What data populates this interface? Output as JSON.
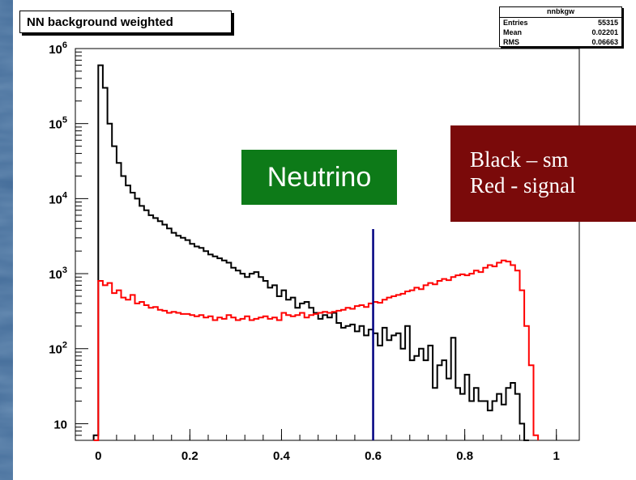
{
  "title": "NN background weighted",
  "stats": {
    "name": "nnbkgw",
    "rows": [
      {
        "label": "Entries",
        "value": "55315"
      },
      {
        "label": "Mean",
        "value": "0.02201"
      },
      {
        "label": "RMS",
        "value": "0.06663"
      }
    ]
  },
  "annotations": {
    "neutrino": "Neutrino",
    "legend_line1": "Black – sm",
    "legend_line2": "Red - signal"
  },
  "colors": {
    "slide_background": "#3f6896",
    "plot_background": "#ffffff",
    "background_hist": "#000000",
    "signal_hist": "#ff0000",
    "cut_line": "#000080",
    "neutrino_box": "#0d7a18",
    "legend_box": "#7a0a0a"
  },
  "chart_data": {
    "type": "histogram",
    "title": "NN background weighted",
    "x_ticks": [
      "0",
      "0.2",
      "0.4",
      "0.6",
      "0.8",
      "1"
    ],
    "x_tick_values": [
      0,
      0.2,
      0.4,
      0.6,
      0.8,
      1.0
    ],
    "y_ticks": [
      "10",
      "10^2",
      "10^3",
      "10^4",
      "10^5",
      "10^6"
    ],
    "y_tick_values": [
      10,
      100,
      1000,
      10000,
      100000,
      1000000
    ],
    "xlim": [
      -0.05,
      1.05
    ],
    "ylim": [
      6,
      1000000
    ],
    "yscale": "log",
    "grid": false,
    "cut_x": 0.6,
    "series": [
      {
        "role": "background",
        "color": "#000000",
        "x": [
          -0.005,
          0.005,
          0.015,
          0.025,
          0.035,
          0.045,
          0.055,
          0.065,
          0.075,
          0.085,
          0.095,
          0.105,
          0.115,
          0.125,
          0.135,
          0.145,
          0.155,
          0.165,
          0.175,
          0.185,
          0.195,
          0.205,
          0.215,
          0.225,
          0.235,
          0.245,
          0.255,
          0.265,
          0.275,
          0.285,
          0.295,
          0.305,
          0.315,
          0.325,
          0.335,
          0.345,
          0.355,
          0.365,
          0.375,
          0.385,
          0.395,
          0.405,
          0.415,
          0.425,
          0.435,
          0.445,
          0.455,
          0.465,
          0.475,
          0.485,
          0.495,
          0.505,
          0.515,
          0.525,
          0.535,
          0.545,
          0.555,
          0.565,
          0.575,
          0.585,
          0.595,
          0.605,
          0.615,
          0.625,
          0.635,
          0.645,
          0.655,
          0.665,
          0.675,
          0.685,
          0.695,
          0.705,
          0.715,
          0.725,
          0.735,
          0.745,
          0.755,
          0.765,
          0.775,
          0.785,
          0.795,
          0.805,
          0.815,
          0.825,
          0.835,
          0.845,
          0.855,
          0.865,
          0.875,
          0.885,
          0.895,
          0.905,
          0.915,
          0.925,
          0.935
        ],
        "y": [
          7,
          600000,
          300000,
          100000,
          50000,
          30000,
          20000,
          15000,
          12000,
          10000,
          8000,
          7000,
          6000,
          5500,
          5000,
          4500,
          4000,
          3500,
          3200,
          3000,
          2800,
          2500,
          2300,
          2200,
          2000,
          1800,
          1700,
          1600,
          1500,
          1400,
          1200,
          1100,
          1000,
          900,
          1000,
          1050,
          900,
          800,
          650,
          700,
          500,
          600,
          450,
          480,
          350,
          400,
          420,
          350,
          300,
          250,
          280,
          260,
          300,
          220,
          190,
          200,
          210,
          170,
          200,
          150,
          180,
          160,
          110,
          190,
          130,
          150,
          160,
          100,
          200,
          70,
          80,
          100,
          70,
          110,
          30,
          60,
          70,
          40,
          140,
          30,
          25,
          45,
          20,
          30,
          20,
          20,
          15,
          20,
          25,
          18,
          30,
          35,
          25,
          10,
          0
        ]
      },
      {
        "role": "signal",
        "color": "#ff0000",
        "x": [
          -0.005,
          0.005,
          0.015,
          0.025,
          0.035,
          0.045,
          0.055,
          0.065,
          0.075,
          0.085,
          0.095,
          0.105,
          0.115,
          0.125,
          0.135,
          0.145,
          0.155,
          0.165,
          0.175,
          0.185,
          0.195,
          0.205,
          0.215,
          0.225,
          0.235,
          0.245,
          0.255,
          0.265,
          0.275,
          0.285,
          0.295,
          0.305,
          0.315,
          0.325,
          0.335,
          0.345,
          0.355,
          0.365,
          0.375,
          0.385,
          0.395,
          0.405,
          0.415,
          0.425,
          0.435,
          0.445,
          0.455,
          0.465,
          0.475,
          0.485,
          0.495,
          0.505,
          0.515,
          0.525,
          0.535,
          0.545,
          0.555,
          0.565,
          0.575,
          0.585,
          0.595,
          0.605,
          0.615,
          0.625,
          0.635,
          0.645,
          0.655,
          0.665,
          0.675,
          0.685,
          0.695,
          0.705,
          0.715,
          0.725,
          0.735,
          0.745,
          0.755,
          0.765,
          0.775,
          0.785,
          0.795,
          0.805,
          0.815,
          0.825,
          0.835,
          0.845,
          0.855,
          0.865,
          0.875,
          0.885,
          0.895,
          0.905,
          0.915,
          0.925,
          0.935,
          0.945,
          0.955
        ],
        "y": [
          6,
          800,
          700,
          750,
          550,
          600,
          480,
          450,
          520,
          400,
          420,
          380,
          350,
          360,
          330,
          320,
          300,
          310,
          300,
          290,
          290,
          280,
          270,
          280,
          260,
          270,
          240,
          260,
          250,
          280,
          260,
          240,
          250,
          270,
          240,
          250,
          260,
          270,
          250,
          260,
          240,
          300,
          280,
          270,
          280,
          300,
          260,
          280,
          290,
          300,
          310,
          300,
          310,
          320,
          330,
          350,
          340,
          370,
          380,
          360,
          400,
          420,
          410,
          450,
          480,
          500,
          520,
          540,
          580,
          600,
          650,
          620,
          700,
          750,
          720,
          800,
          850,
          820,
          900,
          950,
          980,
          950,
          1000,
          1100,
          1050,
          1200,
          1300,
          1250,
          1400,
          1500,
          1450,
          1300,
          1100,
          600,
          200,
          60,
          7
        ]
      }
    ]
  }
}
